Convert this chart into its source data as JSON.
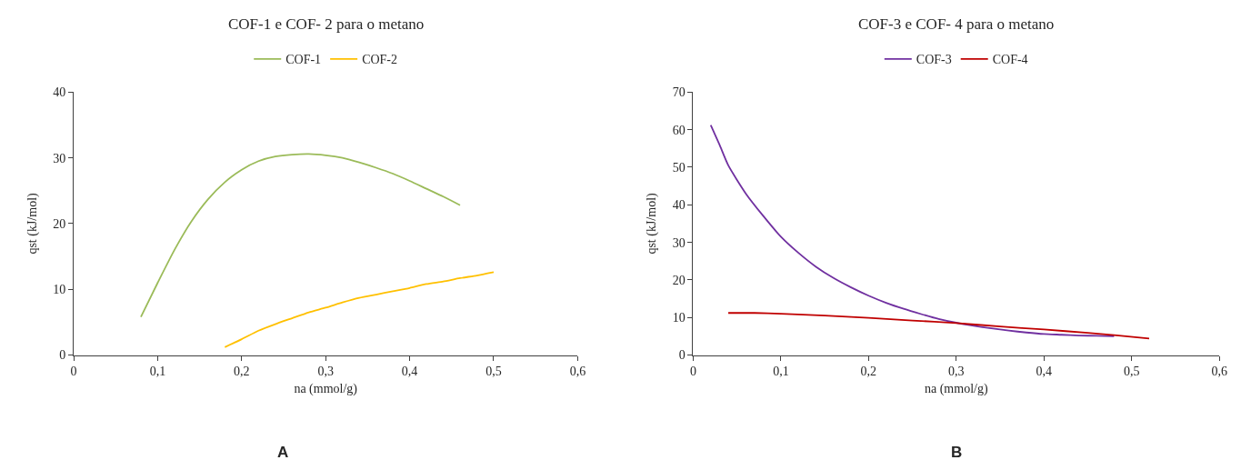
{
  "chart_data": [
    {
      "type": "line",
      "title": "COF-1 e COF- 2 para o metano",
      "xlabel": "na (mmol/g)",
      "ylabel": "qst (kJ/mol)",
      "legend": "top",
      "annotations": [
        "A"
      ],
      "xlim": [
        0,
        0.6
      ],
      "xticks": [
        0,
        {
          "value": 0.1,
          "label": "0,1"
        },
        {
          "value": 0.2,
          "label": "0,2"
        },
        {
          "value": 0.3,
          "label": "0,3"
        },
        {
          "value": 0.4,
          "label": "0,4"
        },
        {
          "value": 0.5,
          "label": "0,5"
        },
        {
          "value": 0.6,
          "label": "0,6"
        }
      ],
      "ylim": [
        0,
        40
      ],
      "yticks": [
        0,
        10,
        20,
        30,
        40
      ],
      "series": [
        {
          "name": "COF-1",
          "color": "#9bbb59",
          "x": [
            0.08,
            0.1,
            0.12,
            0.14,
            0.16,
            0.18,
            0.2,
            0.22,
            0.24,
            0.26,
            0.28,
            0.3,
            0.32,
            0.34,
            0.36,
            0.38,
            0.4,
            0.42,
            0.44,
            0.46
          ],
          "values": [
            5.8,
            11,
            16,
            20.3,
            23.7,
            26.3,
            28.2,
            29.5,
            30.2,
            30.5,
            30.6,
            30.4,
            30,
            29.3,
            28.5,
            27.6,
            26.5,
            25.3,
            24.1,
            22.8
          ]
        },
        {
          "name": "COF-2",
          "color": "#ffc000",
          "x": [
            0.18,
            0.2,
            0.22,
            0.24,
            0.26,
            0.28,
            0.3,
            0.32,
            0.34,
            0.36,
            0.38,
            0.4,
            0.42,
            0.44,
            0.46,
            0.48,
            0.5
          ],
          "values": [
            1.2,
            2.4,
            3.7,
            4.7,
            5.6,
            6.5,
            7.2,
            8,
            8.7,
            9.2,
            9.7,
            10.2,
            10.8,
            11.2,
            11.7,
            12.1,
            12.6
          ]
        }
      ]
    },
    {
      "type": "line",
      "title": "COF-3 e COF- 4 para o metano",
      "xlabel": "na (mmol/g)",
      "ylabel": "qst (kJ/mol)",
      "legend": "top",
      "annotations": [
        "B"
      ],
      "xlim": [
        0,
        0.6
      ],
      "xticks": [
        0,
        {
          "value": 0.1,
          "label": "0,1"
        },
        {
          "value": 0.2,
          "label": "0,2"
        },
        {
          "value": 0.3,
          "label": "0,3"
        },
        {
          "value": 0.4,
          "label": "0,4"
        },
        {
          "value": 0.5,
          "label": "0,5"
        },
        {
          "value": 0.6,
          "label": "0,6"
        }
      ],
      "ylim": [
        0,
        70
      ],
      "yticks": [
        0,
        10,
        20,
        30,
        40,
        50,
        60,
        70
      ],
      "series": [
        {
          "name": "COF-3",
          "color": "#7030a0",
          "x": [
            0.02,
            0.03,
            0.04,
            0.06,
            0.08,
            0.1,
            0.12,
            0.14,
            0.16,
            0.18,
            0.2,
            0.22,
            0.24,
            0.26,
            0.28,
            0.3,
            0.32,
            0.34,
            0.36,
            0.38,
            0.4,
            0.42,
            0.44,
            0.46,
            0.48
          ],
          "values": [
            61.2,
            56,
            50.5,
            43,
            37,
            31.5,
            27.2,
            23.5,
            20.5,
            18,
            15.8,
            13.9,
            12.3,
            10.9,
            9.6,
            8.6,
            7.8,
            7.1,
            6.5,
            6,
            5.6,
            5.4,
            5.2,
            5.1,
            5.0
          ]
        },
        {
          "name": "COF-4",
          "color": "#c00000",
          "x": [
            0.04,
            0.07,
            0.1,
            0.15,
            0.2,
            0.25,
            0.3,
            0.35,
            0.4,
            0.45,
            0.48,
            0.52
          ],
          "values": [
            11.2,
            11.2,
            11,
            10.5,
            9.9,
            9.2,
            8.5,
            7.6,
            6.8,
            5.9,
            5.3,
            4.4
          ]
        }
      ]
    }
  ]
}
